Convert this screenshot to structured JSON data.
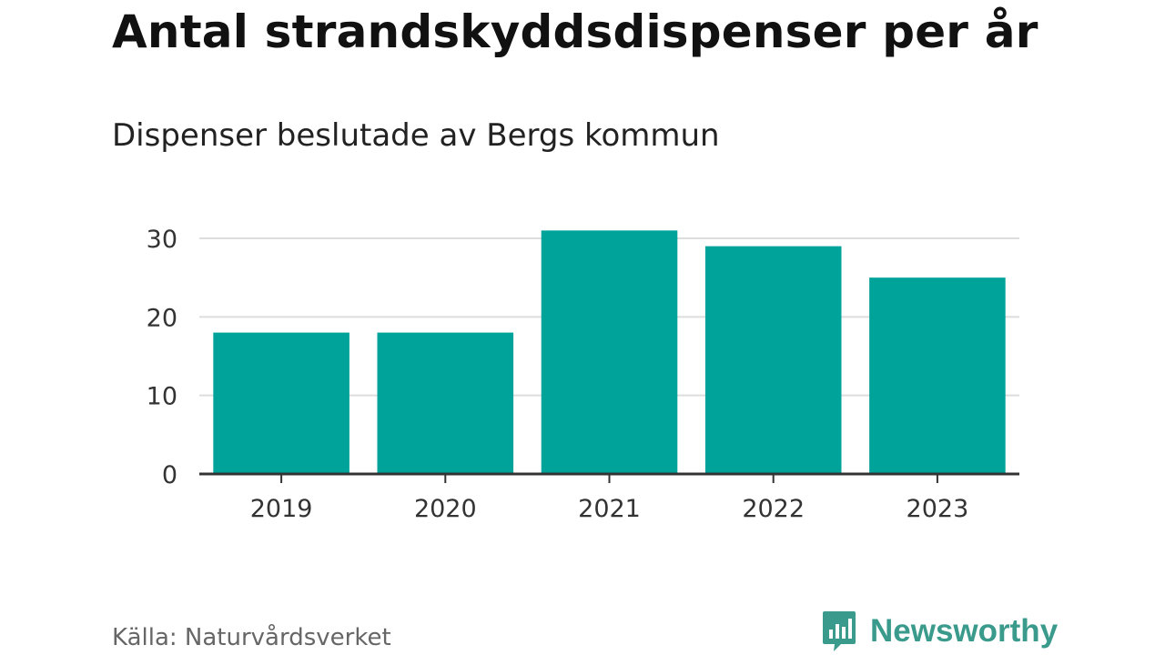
{
  "header": {
    "title": "Antal strandskyddsdispenser per år",
    "subtitle": "Dispenser beslutade av Bergs kommun"
  },
  "footer": {
    "source": "Källa: Naturvårdsverket",
    "brand_name": "Newsworthy",
    "brand_color": "#3a9a8c"
  },
  "chart_data": {
    "type": "bar",
    "title": "Antal strandskyddsdispenser per år",
    "subtitle": "Dispenser beslutade av Bergs kommun",
    "xlabel": "",
    "ylabel": "",
    "categories": [
      "2019",
      "2020",
      "2021",
      "2022",
      "2023"
    ],
    "values": [
      18,
      18,
      31,
      29,
      25
    ],
    "ylim": [
      0,
      30
    ],
    "yticks": [
      0,
      10,
      20,
      30
    ],
    "grid": true,
    "legend": "none",
    "bar_color": "#00a39a"
  }
}
